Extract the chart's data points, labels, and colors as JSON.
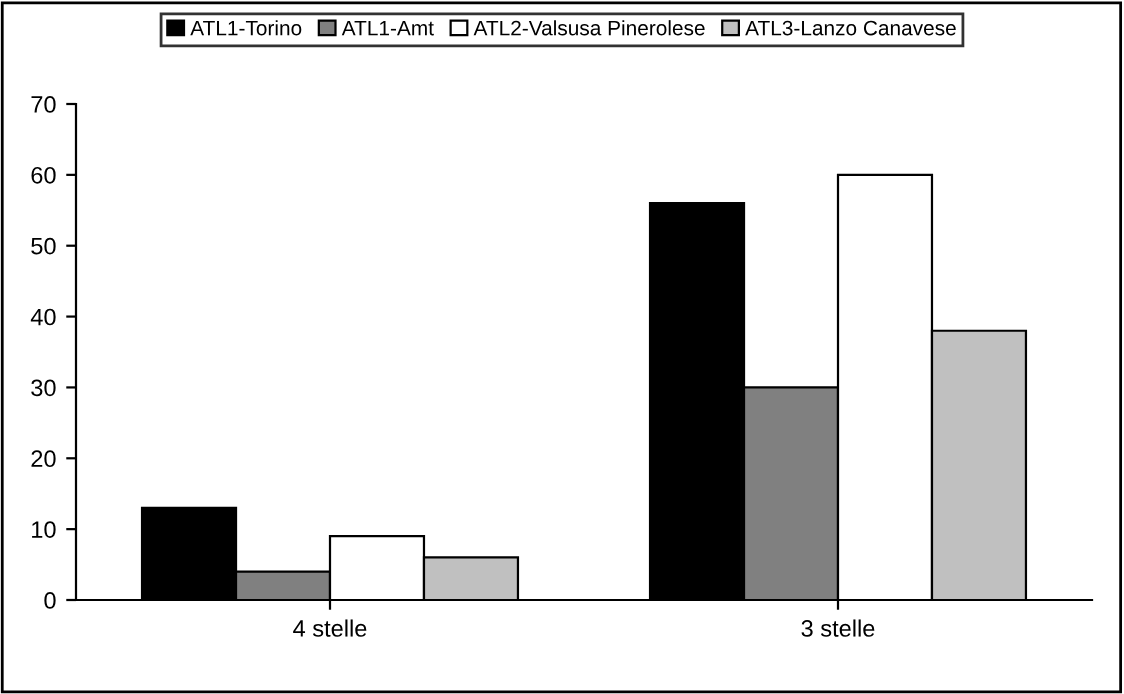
{
  "chart_data": {
    "type": "bar",
    "categories": [
      "4 stelle",
      "3 stelle"
    ],
    "series": [
      {
        "name": "ATL1-Torino",
        "color": "#000000",
        "values": [
          13,
          56
        ]
      },
      {
        "name": "ATL1-Amt",
        "color": "#808080",
        "values": [
          4,
          30
        ]
      },
      {
        "name": "ATL2-Valsusa Pinerolese",
        "color": "#ffffff",
        "values": [
          9,
          60
        ]
      },
      {
        "name": "ATL3-Lanzo Canavese",
        "color": "#c0c0c0",
        "values": [
          6,
          38
        ]
      }
    ],
    "ylim": [
      0,
      70
    ],
    "yticks": [
      0,
      10,
      20,
      30,
      40,
      50,
      60,
      70
    ],
    "grid": false,
    "legend": "top"
  }
}
